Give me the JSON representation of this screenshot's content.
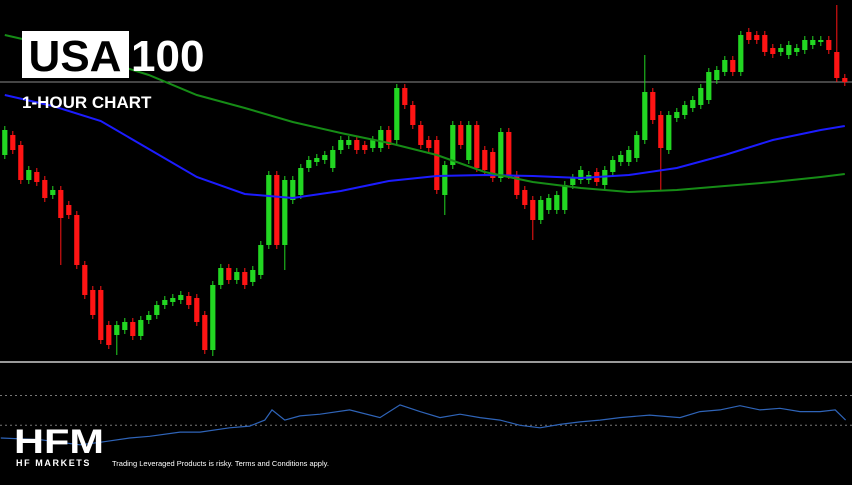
{
  "chart_data": {
    "type": "candlestick",
    "title_box": "USA",
    "title": "100",
    "subtitle": "1-HOUR CHART",
    "xlim": [
      -0.6,
      105.9
    ],
    "ylim": [
      0,
      360
    ],
    "up_color": "#22d622",
    "down_color": "#ff1414",
    "candles": {
      "open": [
        205,
        225,
        215,
        180,
        188,
        180,
        165,
        170,
        155,
        145,
        95,
        70,
        70,
        35,
        25,
        30,
        38,
        24,
        40,
        45,
        55,
        58,
        60,
        64,
        62,
        45,
        10,
        75,
        92,
        80,
        88,
        78,
        85,
        115,
        185,
        115,
        160,
        165,
        192,
        198,
        200,
        192,
        210,
        215,
        220,
        215,
        212,
        212,
        230,
        220,
        272,
        255,
        235,
        220,
        220,
        165,
        195,
        235,
        200,
        235,
        210,
        208,
        182,
        228,
        185,
        170,
        160,
        140,
        150,
        150,
        150,
        175,
        180,
        180,
        188,
        175,
        188,
        198,
        198,
        202,
        220,
        268,
        245,
        210,
        242,
        245,
        252,
        255,
        260,
        280,
        288,
        300,
        288,
        328,
        325,
        325,
        312,
        308,
        305,
        308,
        310,
        315,
        318,
        320,
        308,
        282
      ],
      "high": [
        234,
        229,
        219,
        194,
        192,
        184,
        174,
        174,
        159,
        149,
        99,
        74,
        74,
        39,
        39,
        42,
        42,
        44,
        49,
        59,
        64,
        66,
        69,
        68,
        66,
        49,
        79,
        96,
        96,
        92,
        92,
        94,
        119,
        189,
        189,
        184,
        184,
        196,
        204,
        206,
        209,
        214,
        224,
        224,
        224,
        219,
        224,
        234,
        234,
        276,
        276,
        259,
        239,
        224,
        224,
        199,
        239,
        239,
        239,
        239,
        214,
        212,
        232,
        232,
        189,
        174,
        164,
        164,
        166,
        169,
        179,
        186,
        194,
        189,
        192,
        194,
        204,
        209,
        214,
        229,
        305,
        272,
        249,
        249,
        252,
        259,
        264,
        276,
        292,
        294,
        304,
        304,
        329,
        332,
        329,
        329,
        316,
        316,
        319,
        316,
        324,
        324,
        324,
        324,
        355,
        286
      ],
      "low": [
        201,
        206,
        176,
        176,
        174,
        158,
        161,
        95,
        141,
        91,
        61,
        41,
        16,
        11,
        5,
        26,
        20,
        20,
        36,
        41,
        51,
        54,
        56,
        51,
        34,
        6,
        4,
        71,
        76,
        76,
        71,
        74,
        81,
        111,
        111,
        90,
        156,
        161,
        188,
        194,
        196,
        188,
        206,
        211,
        206,
        206,
        208,
        208,
        211,
        216,
        251,
        231,
        211,
        208,
        166,
        145,
        191,
        211,
        196,
        188,
        186,
        178,
        178,
        181,
        161,
        151,
        120,
        136,
        146,
        146,
        146,
        171,
        176,
        176,
        174,
        171,
        184,
        194,
        194,
        198,
        216,
        236,
        170,
        206,
        238,
        241,
        248,
        251,
        256,
        276,
        284,
        284,
        284,
        316,
        316,
        304,
        302,
        304,
        301,
        304,
        306,
        311,
        314,
        306,
        278,
        274
      ],
      "close": [
        230,
        210,
        180,
        190,
        178,
        162,
        170,
        142,
        145,
        95,
        65,
        45,
        20,
        15,
        35,
        38,
        24,
        40,
        45,
        55,
        60,
        62,
        65,
        55,
        38,
        10,
        75,
        92,
        80,
        88,
        75,
        90,
        115,
        185,
        115,
        180,
        180,
        192,
        200,
        202,
        205,
        210,
        220,
        220,
        210,
        210,
        220,
        230,
        215,
        272,
        255,
        235,
        215,
        212,
        170,
        195,
        235,
        215,
        235,
        192,
        190,
        182,
        228,
        185,
        165,
        155,
        140,
        160,
        162,
        165,
        175,
        182,
        190,
        185,
        178,
        190,
        200,
        205,
        210,
        225,
        268,
        240,
        212,
        245,
        248,
        255,
        260,
        272,
        288,
        290,
        300,
        288,
        325,
        320,
        320,
        308,
        306,
        312,
        315,
        312,
        320,
        320,
        320,
        310,
        282,
        278
      ]
    },
    "series": [
      {
        "color": "#1c1cff",
        "x": [
          0,
          6,
          12,
          18,
          24,
          30,
          36,
          42,
          48,
          54,
          60,
          66,
          72,
          78,
          84,
          90,
          96,
          102,
          105
        ],
        "values": [
          265,
          254,
          239,
          211,
          183,
          166,
          162,
          169,
          179,
          184,
          185,
          184,
          182,
          185,
          192,
          205,
          220,
          230,
          234
        ]
      },
      {
        "color": "#168c16",
        "x": [
          0,
          6,
          12,
          18,
          24,
          30,
          36,
          42,
          48,
          54,
          60,
          66,
          72,
          78,
          84,
          90,
          96,
          102,
          105
        ],
        "values": [
          325,
          314,
          300,
          285,
          265,
          252,
          238,
          227,
          217,
          205,
          188,
          178,
          172,
          168,
          170,
          174,
          178,
          183,
          186
        ]
      }
    ],
    "oscillator": {
      "color": "#2f64b8",
      "ylim": [
        0,
        100
      ],
      "levels": [
        70,
        35
      ],
      "x": [
        -0.5,
        4.4,
        9.4,
        11.9,
        15.6,
        18.1,
        21.9,
        24.4,
        28.1,
        30.6,
        32.5,
        33.4,
        35,
        36.9,
        39.4,
        43.1,
        46.9,
        49.4,
        51.9,
        54.4,
        56.9,
        59.4,
        61.9,
        64.4,
        66.9,
        69.4,
        71.9,
        74.4,
        76.9,
        80.6,
        84.4,
        86.9,
        89.4,
        91.9,
        94.4,
        96.9,
        99.4,
        101.9,
        103.8,
        105.1
      ],
      "values": [
        20,
        18,
        12,
        15,
        20,
        22,
        27,
        27,
        32,
        34,
        41,
        53,
        41,
        46,
        48,
        53,
        44,
        59,
        51,
        44,
        48,
        44,
        41,
        35,
        32,
        36,
        39,
        41,
        44,
        47,
        44,
        51,
        53,
        58,
        53,
        55,
        51,
        51,
        53,
        41
      ]
    }
  },
  "footer": {
    "logo": "HFM",
    "brand": "HF MARKETS",
    "disclaimer": "Trading Leveraged Products is risky. Terms and Conditions apply."
  }
}
